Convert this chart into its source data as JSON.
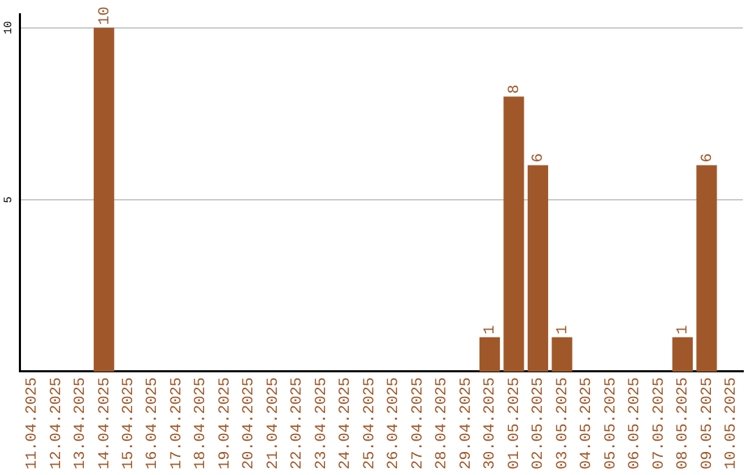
{
  "chart_data": {
    "type": "bar",
    "categories": [
      "11.04.2025",
      "12.04.2025",
      "13.04.2025",
      "14.04.2025",
      "15.04.2025",
      "16.04.2025",
      "17.04.2025",
      "18.04.2025",
      "19.04.2025",
      "20.04.2025",
      "21.04.2025",
      "22.04.2025",
      "23.04.2025",
      "24.04.2025",
      "25.04.2025",
      "26.04.2025",
      "27.04.2025",
      "28.04.2025",
      "29.04.2025",
      "30.04.2025",
      "01.05.2025",
      "02.05.2025",
      "03.05.2025",
      "04.05.2025",
      "05.05.2025",
      "06.05.2025",
      "07.05.2025",
      "08.05.2025",
      "09.05.2025",
      "10.05.2025"
    ],
    "values": [
      0,
      0,
      0,
      10,
      0,
      0,
      0,
      0,
      0,
      0,
      0,
      0,
      0,
      0,
      0,
      0,
      0,
      0,
      0,
      1,
      8,
      6,
      1,
      0,
      0,
      0,
      0,
      1,
      6,
      0
    ],
    "value_labels": [
      null,
      null,
      null,
      "10",
      null,
      null,
      null,
      null,
      null,
      null,
      null,
      null,
      null,
      null,
      null,
      null,
      null,
      null,
      null,
      "1",
      "8",
      "6",
      "1",
      null,
      null,
      null,
      null,
      "1",
      "6",
      null
    ],
    "color": "#a0582a",
    "ylim": [
      0,
      10.4
    ],
    "yticks": [
      5,
      10
    ],
    "grid": "y",
    "legend": false
  }
}
